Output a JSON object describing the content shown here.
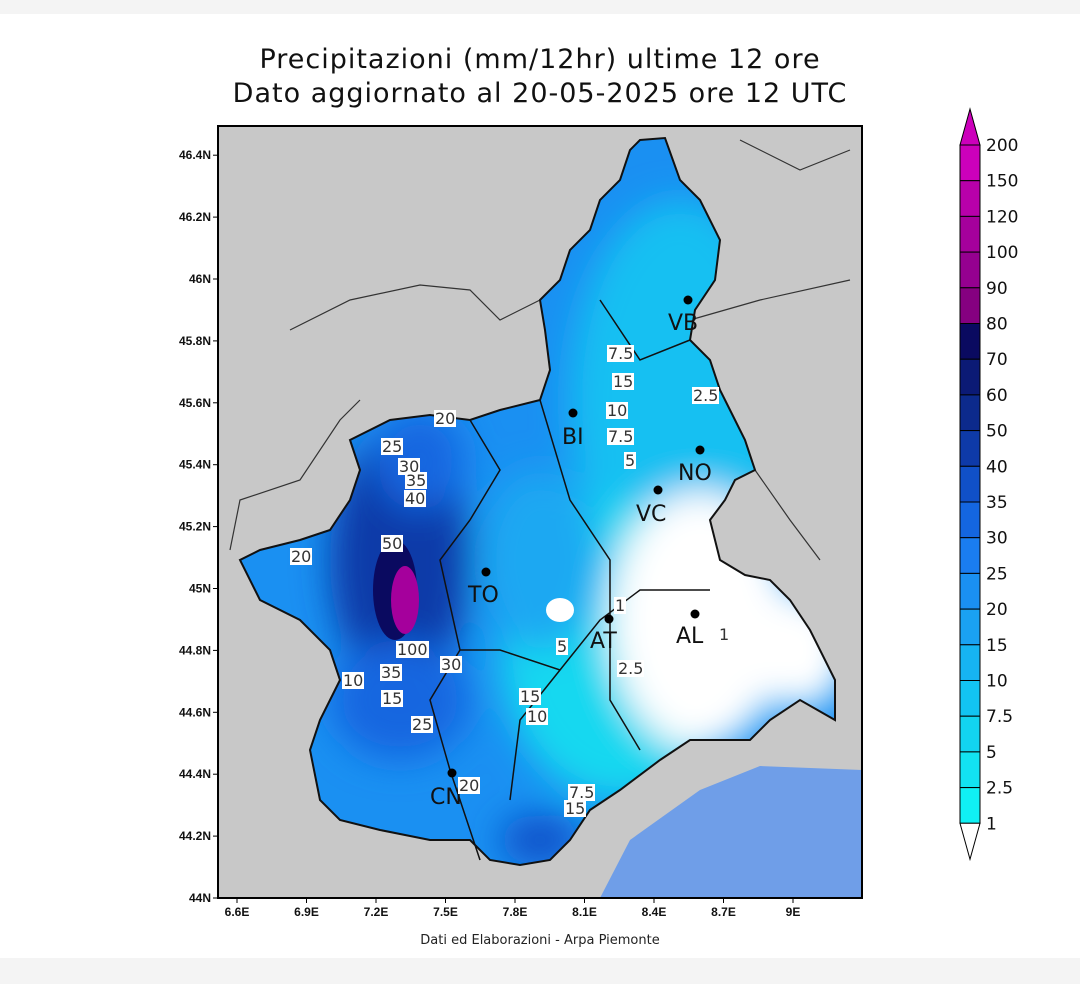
{
  "title_line1": "Precipitazioni (mm/12hr) ultime 12 ore",
  "title_line2": "Dato aggiornato al 20-05-2025 ore 12 UTC",
  "credit": "Dati ed Elaborazioni - Arpa Piemonte",
  "map": {
    "lon_ticks": [
      "6.6E",
      "6.9E",
      "7.2E",
      "7.5E",
      "7.8E",
      "8.1E",
      "8.4E",
      "8.7E",
      "9E"
    ],
    "lat_ticks": [
      "44N",
      "44.2N",
      "44.4N",
      "44.6N",
      "44.8N",
      "45N",
      "45.2N",
      "45.4N",
      "45.6N",
      "45.8N",
      "46N",
      "46.2N",
      "46.4N"
    ],
    "cities": [
      "VB",
      "BI",
      "NO",
      "VC",
      "TO",
      "AT",
      "AL",
      "CN"
    ],
    "contour_labels": [
      "7.5",
      "15",
      "10",
      "7.5",
      "5",
      "2.5",
      "20",
      "25",
      "30",
      "35",
      "40",
      "50",
      "20",
      "100",
      "30",
      "35",
      "15",
      "10",
      "25",
      "15",
      "10",
      "5",
      "1",
      "2.5",
      "1",
      "20",
      "7.5",
      "15"
    ],
    "colors": {
      "outside": "#c8c8c8",
      "sea": "#6f9ee8",
      "no_rain": "#ffffff"
    }
  },
  "colorbar": {
    "labels": [
      "200",
      "150",
      "120",
      "100",
      "90",
      "80",
      "70",
      "60",
      "50",
      "40",
      "35",
      "30",
      "25",
      "20",
      "15",
      "10",
      "7.5",
      "5",
      "2.5",
      "1"
    ],
    "colors": [
      "#cc00bb",
      "#b800aa",
      "#a5009c",
      "#950090",
      "#850080",
      "#0a0a60",
      "#0b1a75",
      "#0c2a8c",
      "#0e3aa8",
      "#1050c8",
      "#1466e0",
      "#1a7df0",
      "#1a90f2",
      "#1aa2f2",
      "#16b4f2",
      "#12c4f2",
      "#12d4f0",
      "#12e2f2",
      "#10f0f4",
      "#ffffff"
    ],
    "top_color": "#cc00bb"
  }
}
